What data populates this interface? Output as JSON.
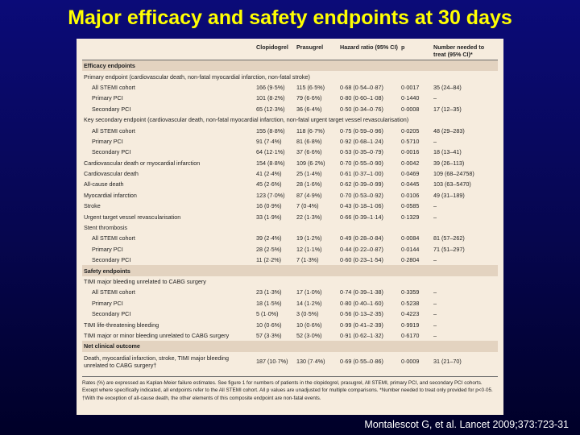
{
  "title": "Major efficacy and safety endpoints at 30 days",
  "citation": "Montalescot G, et al. Lancet 2009;373:723-31",
  "table": {
    "headers": [
      "",
      "Clopidogrel",
      "Prasugrel",
      "Hazard ratio (95% CI)",
      "p",
      "Number needed to treat (95% CI)*"
    ],
    "rows": [
      {
        "type": "band",
        "label": "Efficacy endpoints"
      },
      {
        "type": "heading",
        "label": "Primary endpoint (cardiovascular death, non-fatal myocardial infarction, non-fatal stroke)"
      },
      {
        "type": "sub",
        "label": "All STEMI cohort",
        "clop": "166 (9·5%)",
        "pras": "115 (6·5%)",
        "hr": "0·68 (0·54–0·87)",
        "p": "0·0017",
        "nnt": "35 (24–84)"
      },
      {
        "type": "sub",
        "label": "Primary PCI",
        "clop": "101 (8·2%)",
        "pras": "79 (6·6%)",
        "hr": "0·80 (0·60–1·08)",
        "p": "0·1440",
        "nnt": "–"
      },
      {
        "type": "sub",
        "label": "Secondary PCI",
        "clop": "65 (12·3%)",
        "pras": "36 (6·4%)",
        "hr": "0·50 (0·34–0·76)",
        "p": "0·0008",
        "nnt": "17 (12–35)"
      },
      {
        "type": "heading",
        "label": "Key secondary endpoint (cardiovascular death, non-fatal myocardial infarction, non-fatal urgent target vessel revascularisation)"
      },
      {
        "type": "sub",
        "label": "All STEMI cohort",
        "clop": "155 (8·8%)",
        "pras": "118 (6·7%)",
        "hr": "0·75 (0·59–0·96)",
        "p": "0·0205",
        "nnt": "48 (29–283)"
      },
      {
        "type": "sub",
        "label": "Primary PCI",
        "clop": "91 (7·4%)",
        "pras": "81 (6·8%)",
        "hr": "0·92 (0·68–1·24)",
        "p": "0·5710",
        "nnt": "–"
      },
      {
        "type": "sub",
        "label": "Secondary PCI",
        "clop": "64 (12·1%)",
        "pras": "37 (6·6%)",
        "hr": "0·53 (0·35–0·79)",
        "p": "0·0016",
        "nnt": "18 (13–41)"
      },
      {
        "type": "main",
        "label": "Cardiovascular death or myocardial infarction",
        "clop": "154 (8·8%)",
        "pras": "109 (6·2%)",
        "hr": "0·70 (0·55–0·90)",
        "p": "0·0042",
        "nnt": "39 (26–113)"
      },
      {
        "type": "main",
        "label": "Cardiovascular death",
        "clop": "41 (2·4%)",
        "pras": "25 (1·4%)",
        "hr": "0·61 (0·37–1·00)",
        "p": "0·0469",
        "nnt": "109 (68–24758)"
      },
      {
        "type": "main",
        "label": "All-cause death",
        "clop": "45 (2·6%)",
        "pras": "28 (1·6%)",
        "hr": "0·62 (0·39–0·99)",
        "p": "0·0445",
        "nnt": "103 (63–5470)"
      },
      {
        "type": "main",
        "label": "Myocardial infarction",
        "clop": "123 (7·0%)",
        "pras": "87 (4·9%)",
        "hr": "0·70 (0·53–0·92)",
        "p": "0·0106",
        "nnt": "49 (31–189)"
      },
      {
        "type": "main",
        "label": "Stroke",
        "clop": "16 (0·9%)",
        "pras": "7 (0·4%)",
        "hr": "0·43 (0·18–1·06)",
        "p": "0·0585",
        "nnt": "–"
      },
      {
        "type": "main",
        "label": "Urgent target vessel revascularisation",
        "clop": "33 (1·9%)",
        "pras": "22 (1·3%)",
        "hr": "0·66 (0·39–1·14)",
        "p": "0·1329",
        "nnt": "–"
      },
      {
        "type": "heading",
        "label": "Stent thrombosis"
      },
      {
        "type": "sub",
        "label": "All STEMI cohort",
        "clop": "39 (2·4%)",
        "pras": "19 (1·2%)",
        "hr": "0·49 (0·28–0·84)",
        "p": "0·0084",
        "nnt": "81 (57–262)"
      },
      {
        "type": "sub",
        "label": "Primary PCI",
        "clop": "28 (2·5%)",
        "pras": "12 (1·1%)",
        "hr": "0·44 (0·22–0·87)",
        "p": "0·0144",
        "nnt": "71 (51–297)"
      },
      {
        "type": "sub",
        "label": "Secondary PCI",
        "clop": "11 (2·2%)",
        "pras": "7 (1·3%)",
        "hr": "0·60 (0·23–1·54)",
        "p": "0·2804",
        "nnt": "–"
      },
      {
        "type": "band",
        "label": "Safety endpoints"
      },
      {
        "type": "heading",
        "label": "TIMI major bleeding unrelated to CABG surgery"
      },
      {
        "type": "sub",
        "label": "All STEMI cohort",
        "clop": "23 (1·3%)",
        "pras": "17 (1·0%)",
        "hr": "0·74 (0·39–1·38)",
        "p": "0·3359",
        "nnt": "–"
      },
      {
        "type": "sub",
        "label": "Primary PCI",
        "clop": "18 (1·5%)",
        "pras": "14 (1·2%)",
        "hr": "0·80 (0·40–1·60)",
        "p": "0·5238",
        "nnt": "–"
      },
      {
        "type": "sub",
        "label": "Secondary PCI",
        "clop": "5 (1·0%)",
        "pras": "3 (0·5%)",
        "hr": "0·56 (0·13–2·35)",
        "p": "0·4223",
        "nnt": "–"
      },
      {
        "type": "main",
        "label": "TIMI life-threatening bleeding",
        "clop": "10 (0·6%)",
        "pras": "10 (0·6%)",
        "hr": "0·99 (0·41–2·39)",
        "p": "0·9919",
        "nnt": "–"
      },
      {
        "type": "main",
        "label": "TIMI major or minor bleeding unrelated to CABG surgery",
        "clop": "57 (3·3%)",
        "pras": "52 (3·0%)",
        "hr": "0·91 (0·62–1·32)",
        "p": "0·6170",
        "nnt": "–"
      },
      {
        "type": "band",
        "label": "Net clinical outcome"
      },
      {
        "type": "wrap",
        "label": "Death, myocardial infarction, stroke, TIMI major bleeding unrelated to CABG surgery†",
        "clop": "187 (10·7%)",
        "pras": "130 (7·4%)",
        "hr": "0·69 (0·55–0·86)",
        "p": "0·0009",
        "nnt": "31 (21–70)"
      }
    ]
  },
  "footnote": "Rates (%) are expressed as Kaplan-Meier failure estimates. See figure 1 for numbers of patients in the clopidogrel, prasugrel, All STEMI, primary PCI, and secondary PCI cohorts. Except where specifically indicated, all endpoints refer to the All STEMI cohort. All p values are unadjusted for multiple comparisons. *Number needed to treat only provided for p<0·05. †With the exception of all-cause death, the other elements of this composite endpoint are non-fatal events."
}
